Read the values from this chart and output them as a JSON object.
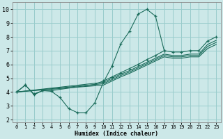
{
  "xlabel": "Humidex (Indice chaleur)",
  "bg_color": "#cce8e8",
  "grid_color": "#99cccc",
  "line_color": "#1a6b5a",
  "xlim": [
    -0.5,
    23.5
  ],
  "ylim": [
    1.8,
    10.5
  ],
  "xticks": [
    0,
    1,
    2,
    3,
    4,
    5,
    6,
    7,
    8,
    9,
    10,
    11,
    12,
    13,
    14,
    15,
    16,
    17,
    18,
    19,
    20,
    21,
    22,
    23
  ],
  "yticks": [
    2,
    3,
    4,
    5,
    6,
    7,
    8,
    9,
    10
  ],
  "line_main_x": [
    0,
    1,
    2,
    3,
    4,
    5,
    6,
    7,
    8,
    9,
    10,
    11,
    12,
    13,
    14,
    15,
    16,
    17
  ],
  "line_main_y": [
    4.0,
    4.5,
    3.8,
    4.1,
    4.05,
    3.6,
    2.8,
    2.5,
    2.5,
    3.2,
    4.7,
    5.9,
    7.5,
    8.4,
    9.65,
    10.0,
    9.5,
    7.0
  ],
  "line_band1_x": [
    0,
    1,
    2,
    3,
    4,
    9,
    10,
    11,
    12,
    13,
    14,
    15,
    16,
    17,
    18,
    19,
    20,
    21,
    22,
    23
  ],
  "line_band1_y": [
    4.0,
    4.5,
    3.85,
    4.1,
    4.1,
    4.55,
    4.8,
    5.1,
    5.4,
    5.7,
    6.0,
    6.35,
    6.65,
    7.0,
    6.9,
    6.9,
    7.0,
    7.0,
    7.7,
    8.0
  ],
  "line_band2_x": [
    0,
    10,
    11,
    12,
    13,
    14,
    15,
    16,
    17,
    18,
    19,
    20,
    21,
    22,
    23
  ],
  "line_band2_y": [
    4.0,
    4.7,
    5.0,
    5.3,
    5.55,
    5.85,
    6.15,
    6.45,
    6.75,
    6.65,
    6.65,
    6.75,
    6.75,
    7.45,
    7.75
  ],
  "line_band3_x": [
    0,
    10,
    11,
    12,
    13,
    14,
    15,
    16,
    17,
    18,
    19,
    20,
    21,
    22,
    23
  ],
  "line_band3_y": [
    4.0,
    4.6,
    4.9,
    5.2,
    5.45,
    5.75,
    6.05,
    6.35,
    6.65,
    6.55,
    6.55,
    6.65,
    6.65,
    7.3,
    7.6
  ],
  "line_band4_x": [
    0,
    10,
    11,
    12,
    13,
    14,
    15,
    16,
    17,
    18,
    19,
    20,
    21,
    22,
    23
  ],
  "line_band4_y": [
    4.0,
    4.5,
    4.8,
    5.1,
    5.35,
    5.65,
    5.95,
    6.25,
    6.55,
    6.45,
    6.45,
    6.55,
    6.55,
    7.15,
    7.45
  ]
}
